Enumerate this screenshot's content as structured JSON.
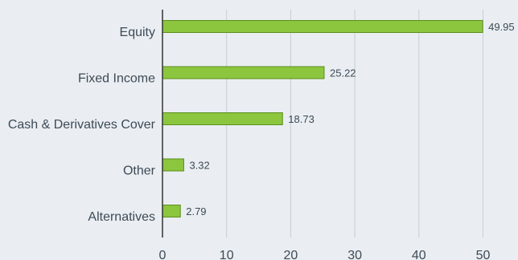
{
  "chart_data": {
    "type": "bar",
    "orientation": "horizontal",
    "categories": [
      "Equity",
      "Fixed Income",
      "Cash & Derivatives Cover",
      "Other",
      "Alternatives"
    ],
    "values": [
      49.95,
      25.22,
      18.73,
      3.32,
      2.79
    ],
    "value_labels": [
      "49.95",
      "25.22",
      "18.73",
      "3.32",
      "2.79"
    ],
    "x_ticks": [
      0,
      10,
      20,
      30,
      40,
      50
    ],
    "xlim": [
      0,
      55
    ],
    "grid": "vertical",
    "legend": "none",
    "colors": {
      "bar": "#8cc63f",
      "background": "#eaeef2"
    }
  }
}
